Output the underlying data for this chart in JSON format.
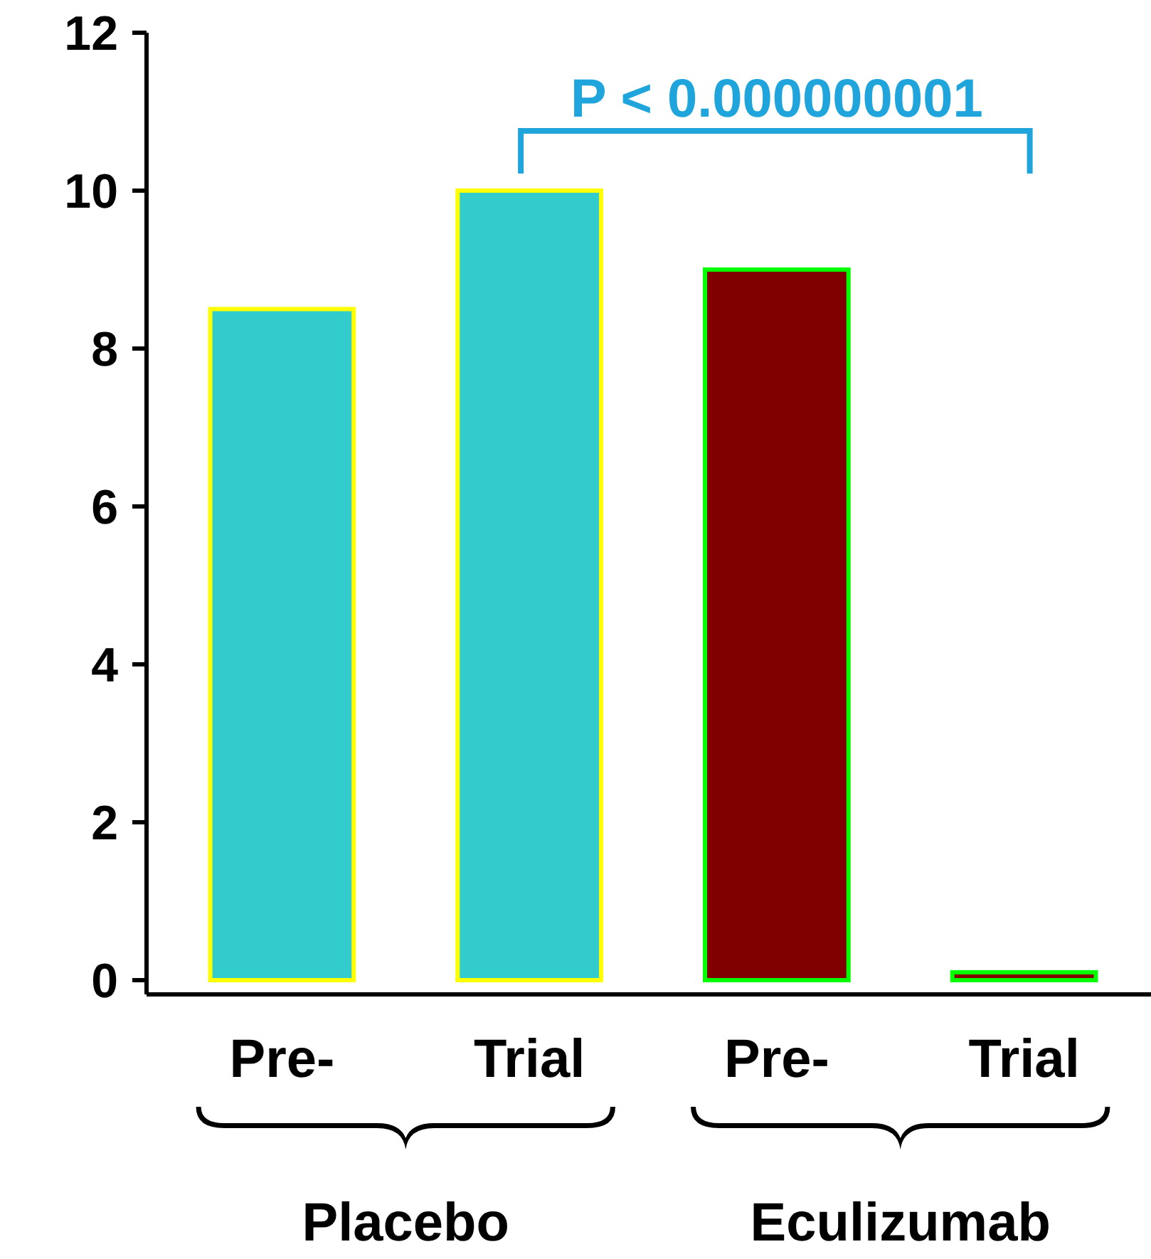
{
  "chart_data": {
    "type": "bar",
    "categories": [
      "Pre-",
      "Trial",
      "Pre-",
      "Trial"
    ],
    "values": [
      8.5,
      10,
      9,
      0.1
    ],
    "colors": [
      "#33cccc",
      "#33cccc",
      "#800000",
      "#800000"
    ],
    "ylim": [
      0,
      12
    ],
    "yticks": [
      0,
      2,
      4,
      6,
      8,
      10,
      12
    ],
    "grid": false,
    "annotations": [
      "P < 0.000000001",
      "Placebo",
      "Eculizumab"
    ]
  }
}
